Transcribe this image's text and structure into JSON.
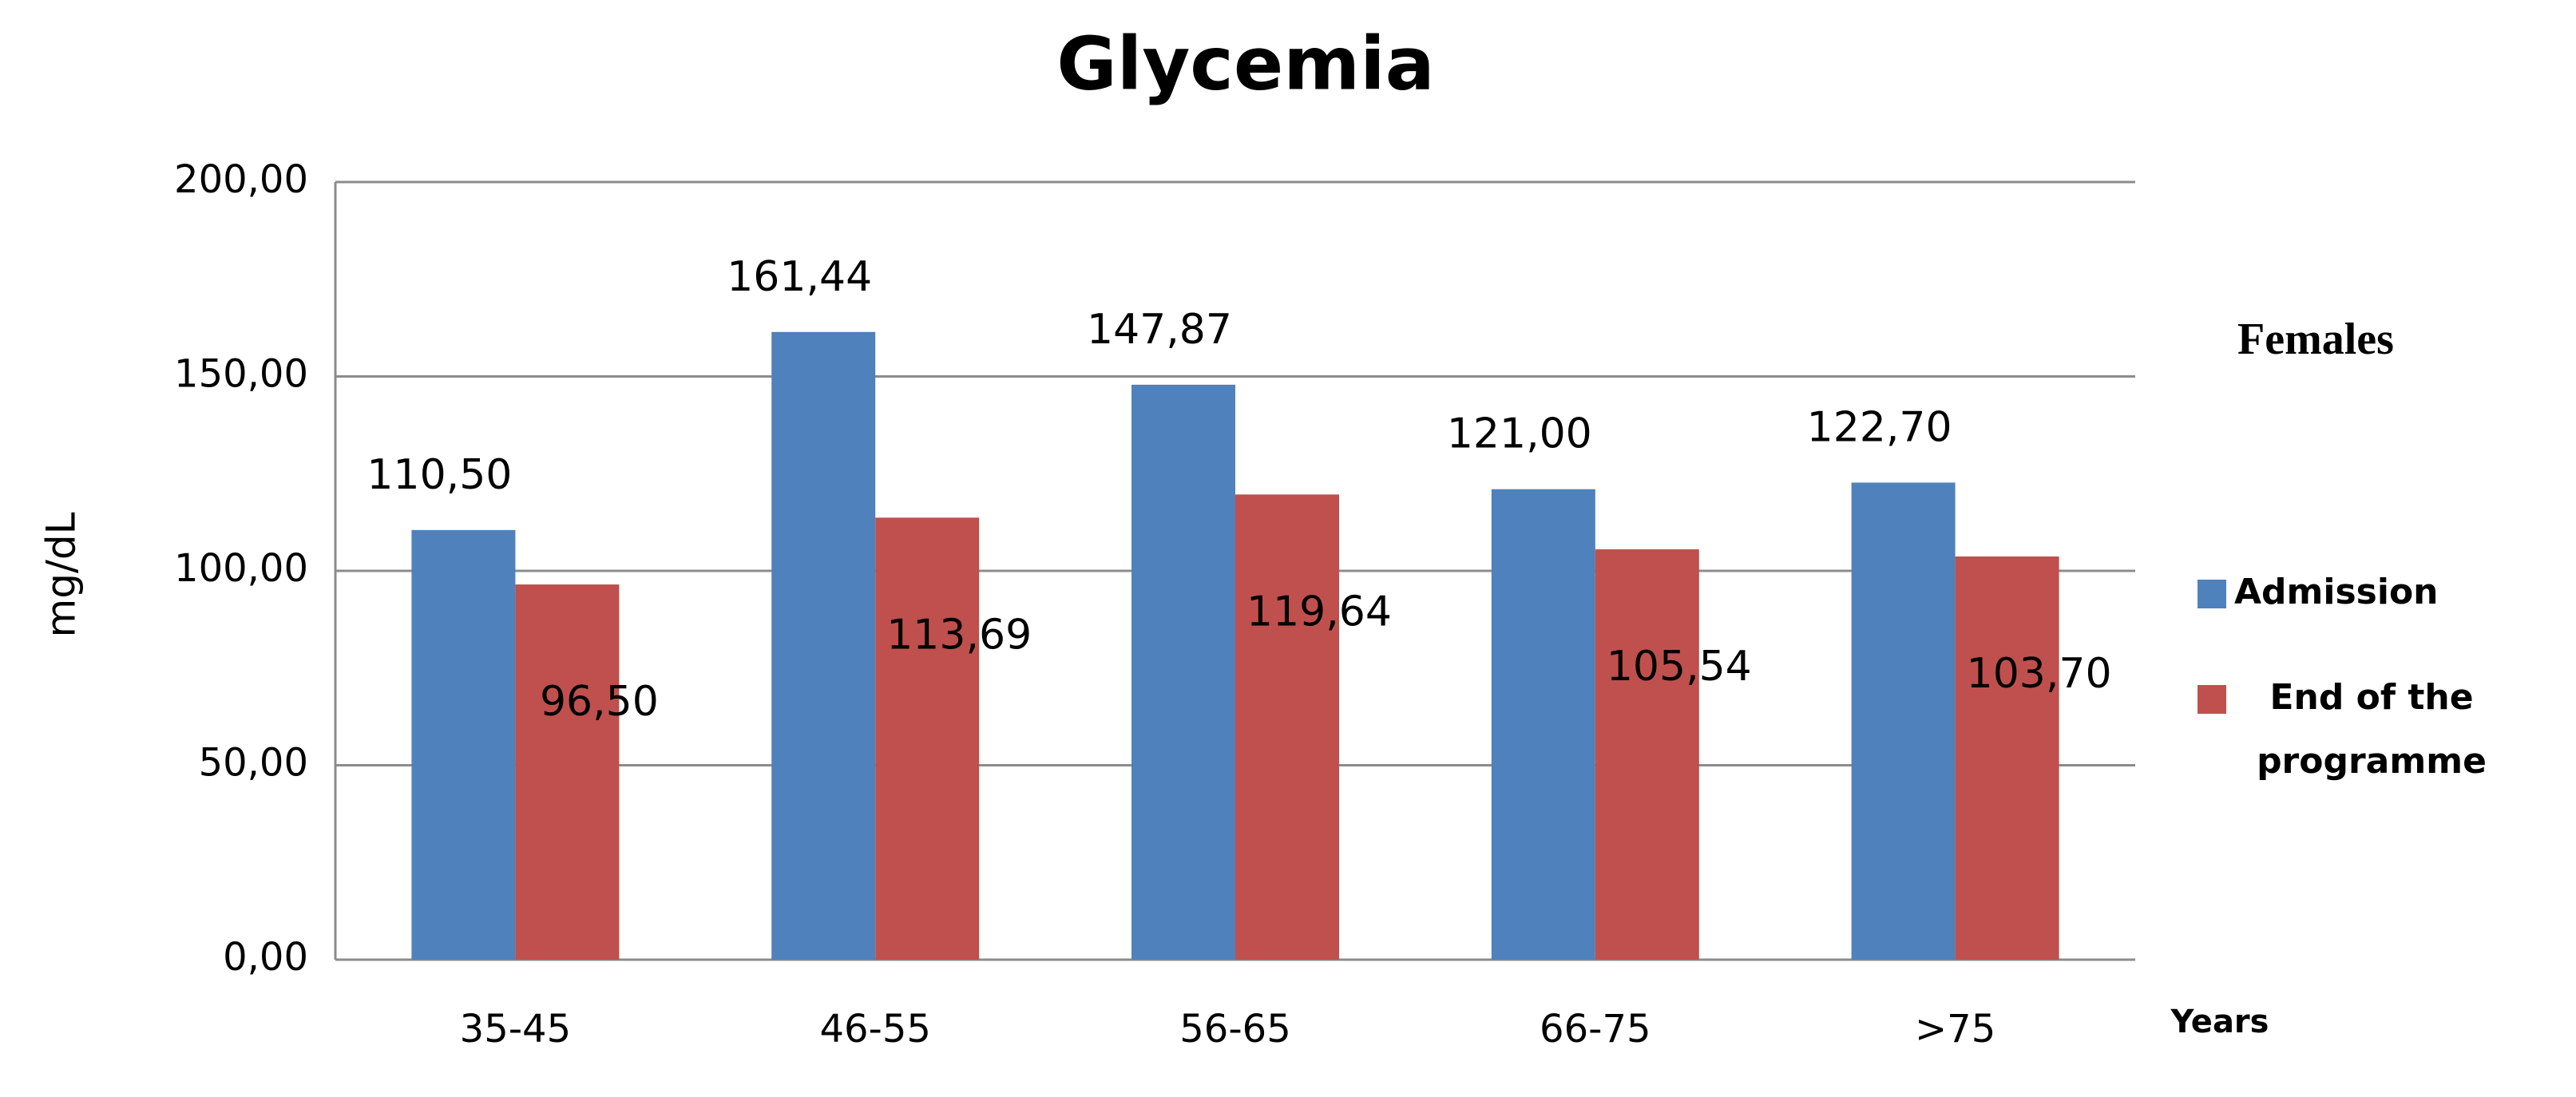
{
  "chart_data": {
    "type": "bar",
    "title": "Glycemia",
    "annotation": "Females",
    "x_label": "Years",
    "y_label": "mg/dL",
    "categories": [
      "35-45",
      "46-55",
      "56-65",
      "66-75",
      ">75"
    ],
    "series": [
      {
        "name": "Admission",
        "color": "#4f81bd",
        "values": [
          110.5,
          161.44,
          147.87,
          121.0,
          122.7
        ],
        "value_labels": [
          "110,50",
          "161,44",
          "147,87",
          "121,00",
          "122,70"
        ]
      },
      {
        "name": "End of the programme",
        "color": "#c0504d",
        "values": [
          96.5,
          113.69,
          119.64,
          105.54,
          103.7
        ],
        "value_labels": [
          "96,50",
          "113,69",
          "119,64",
          "105,54",
          "103,70"
        ]
      }
    ],
    "ylim": [
      0,
      200
    ],
    "yticks": [
      {
        "value": 0,
        "label": "0,00"
      },
      {
        "value": 50,
        "label": "50,00"
      },
      {
        "value": 100,
        "label": "100,00"
      },
      {
        "value": 150,
        "label": "150,00"
      },
      {
        "value": 200,
        "label": "200,00"
      }
    ],
    "grid": true,
    "legend": "right"
  }
}
